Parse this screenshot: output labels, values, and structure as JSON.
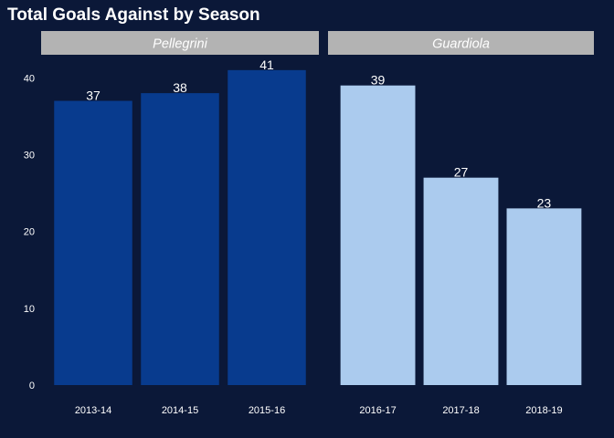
{
  "chart_data": {
    "type": "bar",
    "title": "Total Goals Against by Season",
    "xlabel": "",
    "ylabel": "",
    "ylim": [
      0,
      43
    ],
    "yticks": [
      "0",
      "10",
      "20",
      "30",
      "40"
    ],
    "ytick_values": [
      0,
      10,
      20,
      30,
      40
    ],
    "grid": false,
    "legend": "none",
    "facets": [
      {
        "name": "Pellegrini",
        "color": "#083b8e",
        "categories": [
          "2013-14",
          "2014-15",
          "2015-16"
        ],
        "values": [
          37,
          38,
          41
        ],
        "labels": [
          "37",
          "38",
          "41"
        ]
      },
      {
        "name": "Guardiola",
        "color": "#abcbee",
        "categories": [
          "2016-17",
          "2017-18",
          "2018-19"
        ],
        "values": [
          39,
          27,
          23
        ],
        "labels": [
          "39",
          "27",
          "23"
        ]
      }
    ]
  },
  "colors": {
    "background": "#0b1838",
    "strip": "#b3b3b3",
    "text": "#ffffff"
  }
}
